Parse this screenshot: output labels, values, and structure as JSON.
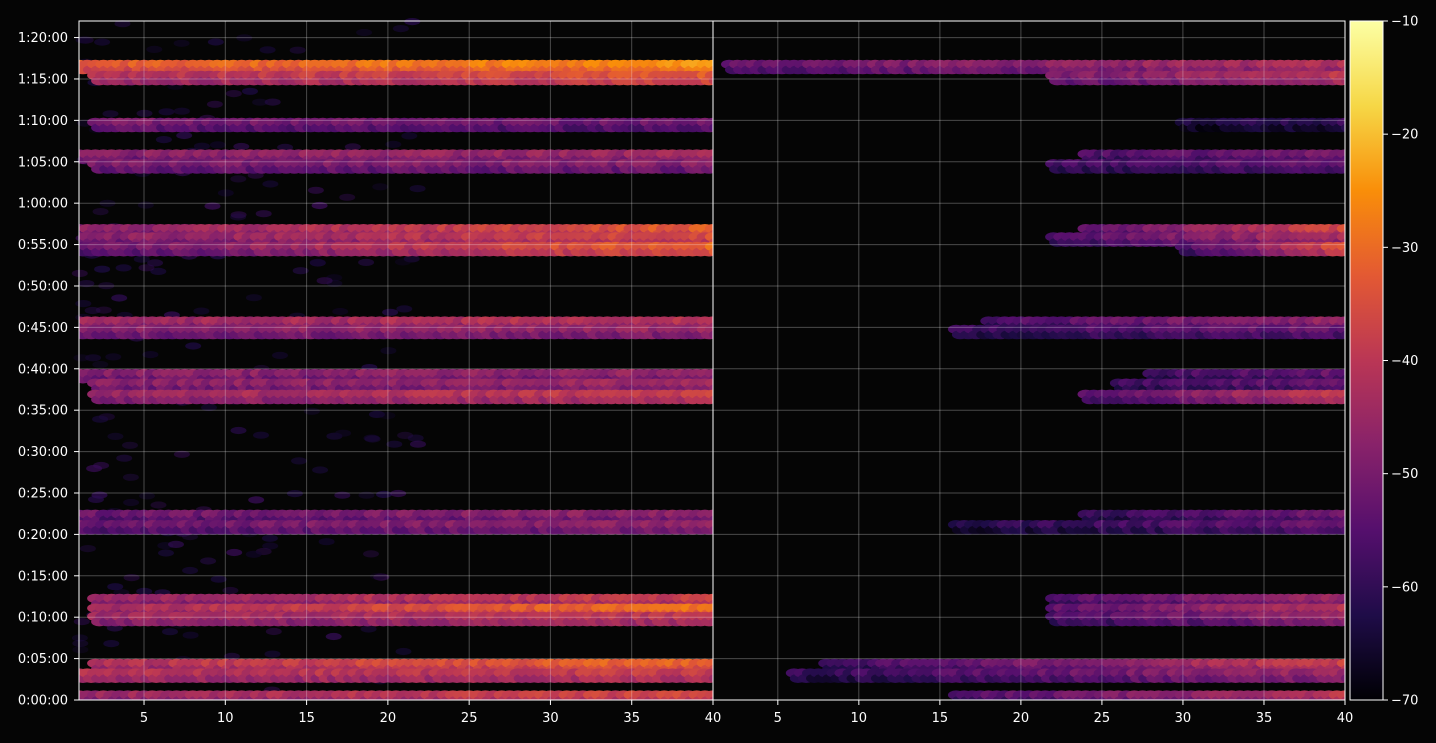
{
  "chart_data": {
    "type": "heatmap",
    "title": "",
    "xlabel": "",
    "ylabel": "",
    "grid": true,
    "panels": [
      {
        "name": "left",
        "xlim": [
          1,
          40
        ],
        "x_ticks": [
          5,
          10,
          15,
          20,
          25,
          30,
          35,
          40
        ],
        "x_tick_labels": [
          "5",
          "10",
          "15",
          "20",
          "25",
          "30",
          "35",
          "40"
        ]
      },
      {
        "name": "right",
        "xlim": [
          1,
          40
        ],
        "x_ticks": [
          5,
          10,
          15,
          20,
          25,
          30,
          35,
          40
        ],
        "x_tick_labels": [
          "5",
          "10",
          "15",
          "20",
          "25",
          "30",
          "35",
          "40"
        ]
      }
    ],
    "y_axis": {
      "unit": "seconds",
      "ylim": [
        0,
        4920
      ],
      "ticks": [
        0,
        300,
        600,
        900,
        1200,
        1500,
        1800,
        2100,
        2400,
        2700,
        3000,
        3300,
        3600,
        3900,
        4200,
        4500,
        4800
      ],
      "tick_labels": [
        "0:00:00",
        "0:05:00",
        "0:10:00",
        "0:15:00",
        "0:20:00",
        "0:25:00",
        "0:30:00",
        "0:35:00",
        "0:40:00",
        "0:45:00",
        "0:50:00",
        "0:55:00",
        "1:00:00",
        "1:05:00",
        "1:10:00",
        "1:15:00",
        "1:20:00"
      ]
    },
    "colorbar": {
      "colormap": "inferno",
      "vmin": -70,
      "vmax": -10,
      "ticks": [
        -10,
        -20,
        -30,
        -40,
        -50,
        -60,
        -70
      ],
      "tick_labels": [
        "−10",
        "−20",
        "−30",
        "−40",
        "−50",
        "−60",
        "−70"
      ]
    },
    "bands": [
      {
        "t": 4590,
        "left": {
          "x0": 1,
          "x1": 40,
          "v0": -33,
          "v1": -25
        },
        "right": {
          "x0": 2,
          "x1": 40,
          "v0": -52,
          "v1": -42
        }
      },
      {
        "t": 4510,
        "left": {
          "x0": 2,
          "x1": 40,
          "v0": -42,
          "v1": -33
        },
        "right": {
          "x0": 22,
          "x1": 40,
          "v0": -50,
          "v1": -40
        }
      },
      {
        "t": 4170,
        "left": {
          "x0": 2,
          "x1": 40,
          "v0": -50,
          "v1": -52
        },
        "right": {
          "x0": 30,
          "x1": 40,
          "v0": -63,
          "v1": -60
        }
      },
      {
        "t": 3940,
        "left": {
          "x0": 1,
          "x1": 40,
          "v0": -48,
          "v1": -44
        },
        "right": {
          "x0": 24,
          "x1": 40,
          "v0": -56,
          "v1": -50
        }
      },
      {
        "t": 3870,
        "left": {
          "x0": 2,
          "x1": 40,
          "v0": -50,
          "v1": -48
        },
        "right": {
          "x0": 22,
          "x1": 40,
          "v0": -58,
          "v1": -52
        }
      },
      {
        "t": 3400,
        "left": {
          "x0": 1,
          "x1": 40,
          "v0": -48,
          "v1": -32
        },
        "right": {
          "x0": 24,
          "x1": 40,
          "v0": -54,
          "v1": -36
        }
      },
      {
        "t": 3340,
        "left": {
          "x0": 1,
          "x1": 40,
          "v0": -48,
          "v1": -35
        },
        "right": {
          "x0": 22,
          "x1": 40,
          "v0": -55,
          "v1": -42
        }
      },
      {
        "t": 3270,
        "left": {
          "x0": 1,
          "x1": 40,
          "v0": -52,
          "v1": -30
        },
        "right": {
          "x0": 30,
          "x1": 40,
          "v0": -55,
          "v1": -35
        }
      },
      {
        "t": 2730,
        "left": {
          "x0": 1,
          "x1": 40,
          "v0": -45,
          "v1": -40
        },
        "right": {
          "x0": 18,
          "x1": 40,
          "v0": -56,
          "v1": -46
        }
      },
      {
        "t": 2670,
        "left": {
          "x0": 1,
          "x1": 40,
          "v0": -48,
          "v1": -45
        },
        "right": {
          "x0": 16,
          "x1": 40,
          "v0": -58,
          "v1": -52
        }
      },
      {
        "t": 2350,
        "left": {
          "x0": 1,
          "x1": 40,
          "v0": -48,
          "v1": -46
        },
        "right": {
          "x0": 28,
          "x1": 40,
          "v0": -58,
          "v1": -52
        }
      },
      {
        "t": 2280,
        "left": {
          "x0": 2,
          "x1": 40,
          "v0": -48,
          "v1": -44
        },
        "right": {
          "x0": 26,
          "x1": 40,
          "v0": -58,
          "v1": -52
        }
      },
      {
        "t": 2200,
        "left": {
          "x0": 2,
          "x1": 40,
          "v0": -45,
          "v1": -38
        },
        "right": {
          "x0": 24,
          "x1": 40,
          "v0": -55,
          "v1": -38
        }
      },
      {
        "t": 1330,
        "left": {
          "x0": 1,
          "x1": 40,
          "v0": -52,
          "v1": -46
        },
        "right": {
          "x0": 24,
          "x1": 40,
          "v0": -60,
          "v1": -50
        }
      },
      {
        "t": 1255,
        "left": {
          "x0": 1,
          "x1": 40,
          "v0": -52,
          "v1": -46
        },
        "right": {
          "x0": 16,
          "x1": 40,
          "v0": -62,
          "v1": -52
        }
      },
      {
        "t": 720,
        "left": {
          "x0": 2,
          "x1": 40,
          "v0": -45,
          "v1": -38
        },
        "right": {
          "x0": 22,
          "x1": 40,
          "v0": -55,
          "v1": -45
        }
      },
      {
        "t": 650,
        "left": {
          "x0": 2,
          "x1": 40,
          "v0": -44,
          "v1": -28
        },
        "right": {
          "x0": 22,
          "x1": 40,
          "v0": -54,
          "v1": -40
        }
      },
      {
        "t": 590,
        "left": {
          "x0": 2,
          "x1": 40,
          "v0": -45,
          "v1": -40
        },
        "right": {
          "x0": 22,
          "x1": 40,
          "v0": -56,
          "v1": -45
        }
      },
      {
        "t": 250,
        "left": {
          "x0": 2,
          "x1": 40,
          "v0": -42,
          "v1": -30
        },
        "right": {
          "x0": 8,
          "x1": 40,
          "v0": -58,
          "v1": -38
        }
      },
      {
        "t": 180,
        "left": {
          "x0": 1,
          "x1": 40,
          "v0": -42,
          "v1": -38
        },
        "right": {
          "x0": 6,
          "x1": 40,
          "v0": -60,
          "v1": -44
        }
      },
      {
        "t": 20,
        "left": {
          "x0": 1,
          "x1": 40,
          "v0": -45,
          "v1": -36
        },
        "right": {
          "x0": 16,
          "x1": 40,
          "v0": -56,
          "v1": -40
        }
      }
    ]
  }
}
